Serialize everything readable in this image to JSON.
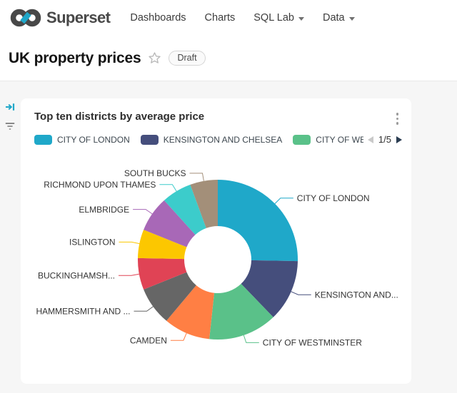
{
  "brand": {
    "name": "Superset",
    "accent_color": "#20A7C9",
    "logo_color": "#484848"
  },
  "nav": {
    "items": [
      {
        "label": "Dashboards",
        "has_dropdown": false
      },
      {
        "label": "Charts",
        "has_dropdown": false
      },
      {
        "label": "SQL Lab",
        "has_dropdown": true
      },
      {
        "label": "Data",
        "has_dropdown": true
      }
    ]
  },
  "page": {
    "title": "UK property prices",
    "status_badge": "Draft"
  },
  "card": {
    "title": "Top ten districts by average price",
    "legend": {
      "items": [
        {
          "label": "CITY OF LONDON",
          "color": "#1FA8C9"
        },
        {
          "label": "KENSINGTON AND CHELSEA",
          "color": "#454E7C"
        },
        {
          "label": "CITY OF WES",
          "color": "#5AC189"
        }
      ],
      "page_indicator": "1/5",
      "prev_enabled": false,
      "next_enabled": true
    }
  },
  "chart_data": {
    "type": "pie",
    "title": "Top ten districts by average price",
    "donut": true,
    "inner_radius_ratio": 0.42,
    "start_angle_deg": 0,
    "direction": "clockwise",
    "legend_position": "top",
    "labels_shown": true,
    "slices": [
      {
        "label": "CITY OF LONDON",
        "percent": 25.3,
        "color": "#1FA8C9"
      },
      {
        "label": "KENSINGTON AND...",
        "percent": 12.5,
        "color": "#454E7C"
      },
      {
        "label": "CITY OF WESTMINSTER",
        "percent": 13.9,
        "color": "#5AC189"
      },
      {
        "label": "CAMDEN",
        "percent": 9.4,
        "color": "#FF7F44"
      },
      {
        "label": "HAMMERSMITH AND ...",
        "percent": 7.8,
        "color": "#666666"
      },
      {
        "label": "BUCKINGHAMSH...",
        "percent": 6.4,
        "color": "#E04355"
      },
      {
        "label": "ISLINGTON",
        "percent": 5.8,
        "color": "#FCC700"
      },
      {
        "label": "ELMBRIDGE",
        "percent": 7.2,
        "color": "#A868B7"
      },
      {
        "label": "RICHMOND UPON THAMES",
        "percent": 6.1,
        "color": "#3CCCCB"
      },
      {
        "label": "SOUTH BUCKS",
        "percent": 5.6,
        "color": "#A38F79"
      }
    ]
  }
}
